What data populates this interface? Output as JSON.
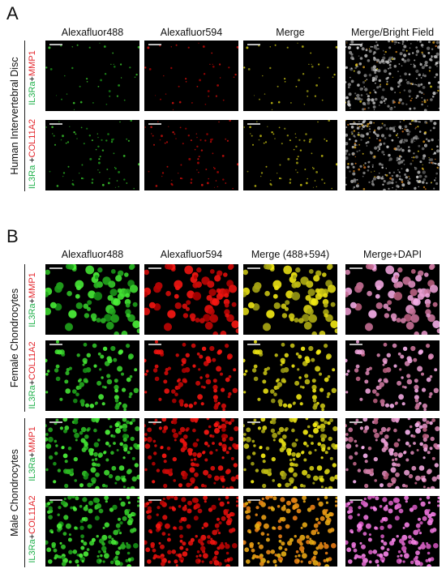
{
  "panelA": {
    "letter": "A",
    "columns": [
      "Alexafluor488",
      "Alexafluor594",
      "Merge",
      "Merge/Bright Field"
    ],
    "group_label": "Human Intervertebral Disc",
    "rows": [
      {
        "green": "IL3Ra",
        "sep": "+",
        "red": "MMP1"
      },
      {
        "green": "IL3Ra",
        "sep": " +",
        "red": "COL11A2"
      }
    ]
  },
  "panelB": {
    "letter": "B",
    "columns": [
      "Alexafluor488",
      "Alexafluor594",
      "Merge (488+594)",
      "Merge+DAPI"
    ],
    "groups": [
      {
        "label": "Female Chondrocytes",
        "rows": [
          {
            "green": "IL3Ra",
            "sep": "+",
            "red": "MMP1"
          },
          {
            "green": "IL3Ra",
            "sep": "+",
            "red": "COL11A2"
          }
        ]
      },
      {
        "label": "Male Chondrocytes",
        "rows": [
          {
            "green": "IL3Ra",
            "sep": "+",
            "red": "MMP1"
          },
          {
            "green": "IL3Ra",
            "sep": "+",
            "red": "COL11A2"
          }
        ]
      }
    ]
  },
  "colors": {
    "green": "#22b14c",
    "red": "#e3262c",
    "text": "#111111"
  }
}
